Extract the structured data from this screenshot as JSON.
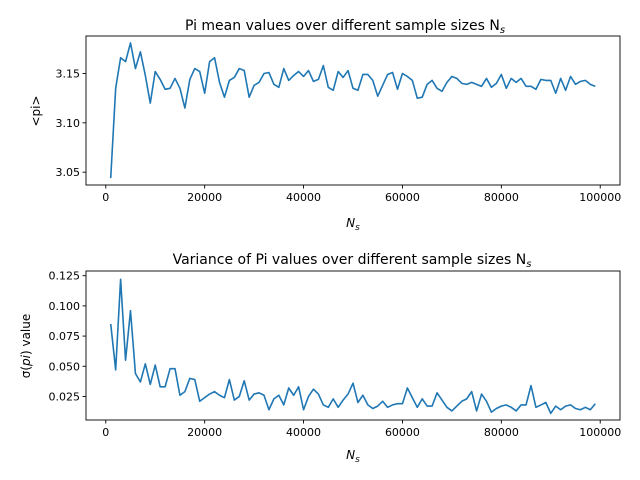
{
  "chart_data": [
    {
      "type": "line",
      "title": "Pi mean values over different sample sizes N",
      "title_sub": "s",
      "xlabel": "N",
      "xlabel_sub": "s",
      "ylabel": "<pi>",
      "xlim": [
        -4000,
        104000
      ],
      "ylim": [
        3.037,
        3.188
      ],
      "xticks": [
        0,
        20000,
        40000,
        60000,
        80000,
        100000
      ],
      "xtick_labels": [
        "0",
        "20000",
        "40000",
        "60000",
        "80000",
        "100000"
      ],
      "yticks": [
        3.05,
        3.1,
        3.15
      ],
      "ytick_labels": [
        "3.05",
        "3.10",
        "3.15"
      ],
      "grid": false,
      "color": "#1f77b4",
      "x": [
        1000,
        2000,
        3000,
        4000,
        5000,
        6000,
        7000,
        8000,
        9000,
        10000,
        11000,
        12000,
        13000,
        14000,
        15000,
        16000,
        17000,
        18000,
        19000,
        20000,
        21000,
        22000,
        23000,
        24000,
        25000,
        26000,
        27000,
        28000,
        29000,
        30000,
        31000,
        32000,
        33000,
        34000,
        35000,
        36000,
        37000,
        38000,
        39000,
        40000,
        41000,
        42000,
        43000,
        44000,
        45000,
        46000,
        47000,
        48000,
        49000,
        50000,
        51000,
        52000,
        53000,
        54000,
        55000,
        56000,
        57000,
        58000,
        59000,
        60000,
        61000,
        62000,
        63000,
        64000,
        65000,
        66000,
        67000,
        68000,
        69000,
        70000,
        71000,
        72000,
        73000,
        74000,
        75000,
        76000,
        77000,
        78000,
        79000,
        80000,
        81000,
        82000,
        83000,
        84000,
        85000,
        86000,
        87000,
        88000,
        89000,
        90000,
        91000,
        92000,
        93000,
        94000,
        95000,
        96000,
        97000,
        98000,
        99000
      ],
      "y": [
        3.044,
        3.135,
        3.166,
        3.162,
        3.181,
        3.155,
        3.172,
        3.148,
        3.12,
        3.152,
        3.144,
        3.134,
        3.135,
        3.145,
        3.135,
        3.115,
        3.144,
        3.155,
        3.152,
        3.13,
        3.162,
        3.166,
        3.141,
        3.126,
        3.143,
        3.146,
        3.155,
        3.153,
        3.126,
        3.138,
        3.141,
        3.15,
        3.151,
        3.139,
        3.136,
        3.155,
        3.143,
        3.148,
        3.152,
        3.147,
        3.153,
        3.142,
        3.144,
        3.158,
        3.136,
        3.133,
        3.152,
        3.146,
        3.153,
        3.135,
        3.133,
        3.149,
        3.149,
        3.143,
        3.127,
        3.138,
        3.149,
        3.151,
        3.134,
        3.15,
        3.147,
        3.143,
        3.125,
        3.126,
        3.139,
        3.143,
        3.135,
        3.132,
        3.141,
        3.147,
        3.145,
        3.14,
        3.139,
        3.141,
        3.139,
        3.137,
        3.145,
        3.136,
        3.14,
        3.149,
        3.135,
        3.145,
        3.141,
        3.145,
        3.137,
        3.137,
        3.134,
        3.144,
        3.143,
        3.143,
        3.13,
        3.145,
        3.133,
        3.147,
        3.139,
        3.142,
        3.143,
        3.139,
        3.137
      ]
    },
    {
      "type": "line",
      "title": "Variance of Pi values over different sample sizes N",
      "title_sub": "s",
      "xlabel": "N",
      "xlabel_sub": "s",
      "ylabel_pre": "σ(",
      "ylabel_italic": "pi",
      "ylabel_post": ") value",
      "xlim": [
        -4000,
        104000
      ],
      "ylim": [
        0.0055,
        0.1289
      ],
      "xticks": [
        0,
        20000,
        40000,
        60000,
        80000,
        100000
      ],
      "xtick_labels": [
        "0",
        "20000",
        "40000",
        "60000",
        "80000",
        "100000"
      ],
      "yticks": [
        0.025,
        0.05,
        0.075,
        0.1,
        0.125
      ],
      "ytick_labels": [
        "0.025",
        "0.050",
        "0.075",
        "0.100",
        "0.125"
      ],
      "grid": false,
      "color": "#1f77b4",
      "x": [
        1000,
        2000,
        3000,
        4000,
        5000,
        6000,
        7000,
        8000,
        9000,
        10000,
        11000,
        12000,
        13000,
        14000,
        15000,
        16000,
        17000,
        18000,
        19000,
        20000,
        21000,
        22000,
        23000,
        24000,
        25000,
        26000,
        27000,
        28000,
        29000,
        30000,
        31000,
        32000,
        33000,
        34000,
        35000,
        36000,
        37000,
        38000,
        39000,
        40000,
        41000,
        42000,
        43000,
        44000,
        45000,
        46000,
        47000,
        48000,
        49000,
        50000,
        51000,
        52000,
        53000,
        54000,
        55000,
        56000,
        57000,
        58000,
        59000,
        60000,
        61000,
        62000,
        63000,
        64000,
        65000,
        66000,
        67000,
        68000,
        69000,
        70000,
        71000,
        72000,
        73000,
        74000,
        75000,
        76000,
        77000,
        78000,
        79000,
        80000,
        81000,
        82000,
        83000,
        84000,
        85000,
        86000,
        87000,
        88000,
        89000,
        90000,
        91000,
        92000,
        93000,
        94000,
        95000,
        96000,
        97000,
        98000,
        99000
      ],
      "y": [
        0.085,
        0.047,
        0.122,
        0.055,
        0.096,
        0.044,
        0.037,
        0.052,
        0.035,
        0.051,
        0.033,
        0.033,
        0.048,
        0.048,
        0.026,
        0.029,
        0.04,
        0.039,
        0.021,
        0.024,
        0.027,
        0.029,
        0.026,
        0.024,
        0.039,
        0.022,
        0.025,
        0.038,
        0.022,
        0.027,
        0.028,
        0.026,
        0.014,
        0.023,
        0.026,
        0.018,
        0.032,
        0.026,
        0.033,
        0.014,
        0.025,
        0.031,
        0.027,
        0.018,
        0.016,
        0.023,
        0.016,
        0.022,
        0.027,
        0.036,
        0.02,
        0.026,
        0.018,
        0.015,
        0.017,
        0.021,
        0.016,
        0.018,
        0.019,
        0.019,
        0.032,
        0.024,
        0.016,
        0.023,
        0.017,
        0.017,
        0.028,
        0.022,
        0.016,
        0.013,
        0.017,
        0.021,
        0.023,
        0.029,
        0.013,
        0.027,
        0.021,
        0.012,
        0.015,
        0.017,
        0.018,
        0.016,
        0.013,
        0.018,
        0.018,
        0.034,
        0.016,
        0.018,
        0.02,
        0.011,
        0.017,
        0.014,
        0.017,
        0.018,
        0.015,
        0.014,
        0.016,
        0.014,
        0.019
      ]
    }
  ]
}
